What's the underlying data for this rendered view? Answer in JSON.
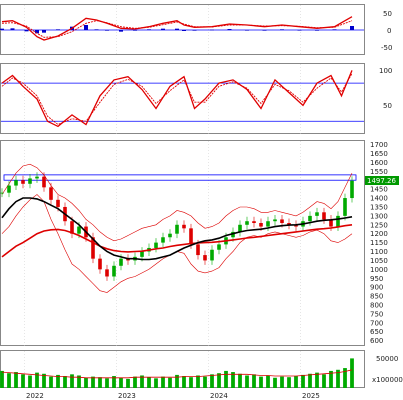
{
  "chart_data": [
    {
      "type": "bar",
      "panel": "macd",
      "ytick_labels": [
        "50",
        "0",
        "-50"
      ],
      "ylim": [
        -75,
        75
      ],
      "grid": true,
      "colors": {
        "macd": "#e00000",
        "signal": "#e00000",
        "hist_pos": "#0000cc",
        "hist_neg": "#0000cc",
        "zero": "#0000ff"
      },
      "macd_x": [
        0.0,
        0.03,
        0.07,
        0.1,
        0.12,
        0.16,
        0.2,
        0.24,
        0.27,
        0.3,
        0.34,
        0.38,
        0.42,
        0.46,
        0.5,
        0.52,
        0.55,
        0.6,
        0.65,
        0.7,
        0.75,
        0.8,
        0.85,
        0.9,
        0.95,
        1.0
      ],
      "macd_values": [
        25,
        28,
        8,
        -20,
        -30,
        -18,
        5,
        35,
        30,
        20,
        5,
        3,
        10,
        20,
        28,
        15,
        8,
        10,
        18,
        15,
        10,
        15,
        10,
        5,
        10,
        40
      ],
      "signal_values": [
        20,
        22,
        12,
        -10,
        -22,
        -20,
        -5,
        20,
        28,
        22,
        10,
        5,
        8,
        16,
        24,
        18,
        10,
        9,
        15,
        15,
        12,
        13,
        11,
        7,
        8,
        28
      ],
      "hist_values": [
        4,
        5,
        -4,
        -10,
        -8,
        2,
        10,
        15,
        2,
        -2,
        -5,
        -2,
        2,
        4,
        4,
        -3,
        -2,
        1,
        3,
        0,
        -2,
        2,
        -1,
        -2,
        2,
        12
      ]
    },
    {
      "type": "line",
      "panel": "stochastic",
      "ytick_labels": [
        "100",
        "50"
      ],
      "ylim": [
        0,
        110
      ],
      "levels": [
        80,
        20
      ],
      "grid": true,
      "colors": {
        "k": "#e00000",
        "d": "#e00000",
        "levels": "#0000ff"
      },
      "x": [
        0.0,
        0.03,
        0.06,
        0.1,
        0.13,
        0.16,
        0.2,
        0.24,
        0.28,
        0.32,
        0.36,
        0.4,
        0.44,
        0.48,
        0.52,
        0.55,
        0.58,
        0.62,
        0.66,
        0.7,
        0.74,
        0.78,
        0.82,
        0.86,
        0.9,
        0.94,
        0.97,
        1.0
      ],
      "k_values": [
        80,
        92,
        75,
        55,
        20,
        12,
        30,
        15,
        60,
        85,
        90,
        70,
        40,
        75,
        90,
        40,
        55,
        80,
        85,
        70,
        40,
        85,
        65,
        45,
        80,
        92,
        60,
        100
      ],
      "d_values": [
        75,
        88,
        80,
        60,
        28,
        15,
        24,
        20,
        50,
        78,
        86,
        75,
        48,
        68,
        85,
        50,
        50,
        75,
        82,
        72,
        48,
        78,
        68,
        50,
        72,
        88,
        66,
        95
      ]
    },
    {
      "type": "line",
      "panel": "price",
      "ytick_labels": [
        "1700",
        "1650",
        "1600",
        "1550",
        "1500",
        "1450",
        "1400",
        "1350",
        "1300",
        "1250",
        "1200",
        "1150",
        "1100",
        "1050",
        "1000",
        "950",
        "900",
        "850",
        "800",
        "750",
        "700",
        "650",
        "600"
      ],
      "ylim": [
        570,
        1720
      ],
      "last_price_label": "1497.26",
      "resistance_band": [
        1500,
        1530
      ],
      "colors": {
        "candle_up": "#00aa00",
        "candle_down": "#dd0000",
        "ma_long": "#000000",
        "ma_mid": "#dd0000",
        "bollinger": "#dd0000",
        "band": "#0000ff",
        "badge": "#009900"
      },
      "x": [
        0.0,
        0.02,
        0.04,
        0.06,
        0.08,
        0.1,
        0.12,
        0.14,
        0.16,
        0.18,
        0.2,
        0.22,
        0.24,
        0.26,
        0.28,
        0.3,
        0.32,
        0.34,
        0.36,
        0.38,
        0.4,
        0.42,
        0.44,
        0.46,
        0.48,
        0.5,
        0.52,
        0.54,
        0.56,
        0.58,
        0.6,
        0.62,
        0.64,
        0.66,
        0.68,
        0.7,
        0.72,
        0.74,
        0.76,
        0.78,
        0.8,
        0.82,
        0.84,
        0.86,
        0.88,
        0.9,
        0.92,
        0.94,
        0.96,
        0.98,
        1.0
      ],
      "close": [
        1430,
        1470,
        1500,
        1480,
        1510,
        1520,
        1460,
        1390,
        1350,
        1270,
        1200,
        1240,
        1180,
        1060,
        1000,
        960,
        1020,
        1060,
        1050,
        1070,
        1100,
        1120,
        1150,
        1180,
        1200,
        1250,
        1230,
        1140,
        1080,
        1050,
        1110,
        1140,
        1180,
        1210,
        1250,
        1270,
        1260,
        1240,
        1270,
        1280,
        1260,
        1250,
        1240,
        1270,
        1300,
        1320,
        1280,
        1240,
        1300,
        1400,
        1497
      ],
      "ma_long": [
        1290,
        1340,
        1380,
        1400,
        1400,
        1395,
        1380,
        1360,
        1340,
        1310,
        1280,
        1250,
        1210,
        1170,
        1130,
        1100,
        1080,
        1070,
        1060,
        1060,
        1055,
        1055,
        1060,
        1070,
        1080,
        1100,
        1120,
        1135,
        1150,
        1160,
        1165,
        1175,
        1190,
        1200,
        1210,
        1218,
        1222,
        1225,
        1232,
        1240,
        1245,
        1248,
        1250,
        1255,
        1262,
        1270,
        1275,
        1278,
        1282,
        1288,
        1295
      ],
      "ma_mid": [
        1070,
        1100,
        1130,
        1150,
        1175,
        1200,
        1215,
        1222,
        1224,
        1218,
        1205,
        1190,
        1170,
        1150,
        1130,
        1115,
        1105,
        1100,
        1098,
        1100,
        1102,
        1108,
        1115,
        1120,
        1128,
        1135,
        1140,
        1145,
        1148,
        1150,
        1152,
        1155,
        1160,
        1165,
        1170,
        1176,
        1180,
        1185,
        1190,
        1195,
        1200,
        1205,
        1210,
        1215,
        1220,
        1225,
        1228,
        1232,
        1238,
        1245,
        1250
      ],
      "boll_upper": [
        1420,
        1480,
        1540,
        1580,
        1590,
        1570,
        1530,
        1470,
        1420,
        1400,
        1370,
        1330,
        1280,
        1250,
        1210,
        1180,
        1160,
        1170,
        1190,
        1210,
        1230,
        1240,
        1250,
        1280,
        1300,
        1330,
        1320,
        1300,
        1260,
        1230,
        1240,
        1260,
        1300,
        1330,
        1350,
        1350,
        1340,
        1320,
        1320,
        1330,
        1320,
        1310,
        1300,
        1320,
        1350,
        1380,
        1370,
        1340,
        1380,
        1460,
        1540
      ],
      "boll_lower": [
        1200,
        1240,
        1300,
        1350,
        1390,
        1420,
        1380,
        1280,
        1200,
        1110,
        1030,
        1000,
        960,
        920,
        880,
        870,
        900,
        930,
        950,
        960,
        980,
        1000,
        1030,
        1060,
        1080,
        1100,
        1090,
        1030,
        990,
        980,
        990,
        1010,
        1060,
        1100,
        1150,
        1180,
        1190,
        1180,
        1200,
        1210,
        1200,
        1190,
        1180,
        1190,
        1210,
        1220,
        1200,
        1160,
        1150,
        1170,
        1200
      ]
    },
    {
      "type": "bar",
      "panel": "volume",
      "ytick_labels": [
        "50000",
        "x100000"
      ],
      "ylim": [
        0,
        65000
      ],
      "colors": {
        "bars": "#00aa00",
        "ma": "#dd0000"
      },
      "x_tick_labels": [
        "2022",
        "2023",
        "2024",
        "2025"
      ],
      "values": [
        30000,
        26000,
        28000,
        24000,
        22000,
        27000,
        25000,
        20000,
        23000,
        21000,
        24000,
        22000,
        18000,
        20000,
        19000,
        17000,
        21000,
        18000,
        16000,
        20000,
        22000,
        19000,
        17000,
        20000,
        18000,
        23000,
        21000,
        19000,
        22000,
        20000,
        24000,
        26000,
        30000,
        28000,
        25000,
        22000,
        24000,
        20000,
        22000,
        18000,
        20000,
        19000,
        21000,
        23000,
        25000,
        27000,
        24000,
        30000,
        32000,
        35000,
        52000
      ],
      "ma_values": [
        28000,
        27000,
        26000,
        25000,
        24000,
        23000,
        22000,
        21000,
        20000,
        20000,
        19000,
        19000,
        18000,
        18000,
        18000,
        18000,
        18000,
        18000,
        18000,
        19000,
        19000,
        19000,
        19000,
        19000,
        19000,
        19000,
        20000,
        20000,
        20000,
        21000,
        22000,
        23000,
        24000,
        24000,
        24000,
        24000,
        23000,
        22000,
        22000,
        21000,
        21000,
        21000,
        21000,
        22000,
        23000,
        24000,
        25000,
        26000,
        27000,
        29000,
        32000
      ]
    }
  ]
}
